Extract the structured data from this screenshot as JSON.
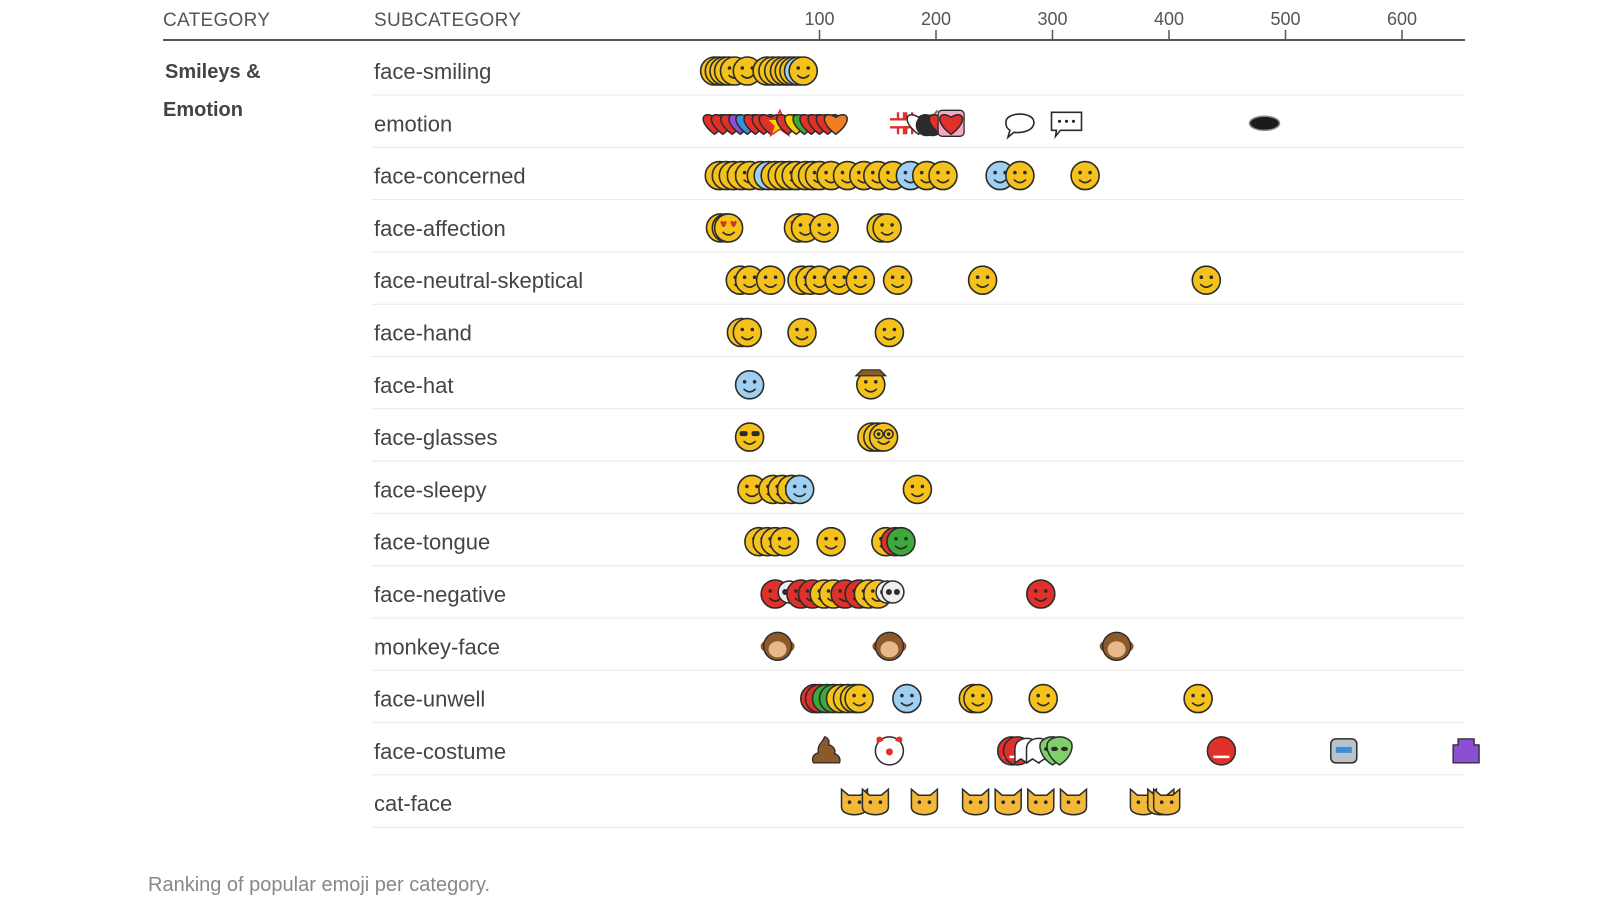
{
  "header": {
    "category": "CATEGORY",
    "subcategory": "SUBCATEGORY"
  },
  "caption": "Ranking of popular emoji per category.",
  "colors": {
    "face": "#f5c21b",
    "face_outline": "#2b2b2b",
    "red": "#e0302a",
    "orange": "#f07f23",
    "grey": "#9a9a9a",
    "purple": "#8a4fd2",
    "brown": "#8b5a2b",
    "green": "#3ea83a",
    "blue": "#3b8fd8",
    "rule": "#555555",
    "rowline": "#e8e8e8"
  },
  "chart_data": {
    "type": "scatter",
    "x_ticks": [
      100,
      200,
      300,
      400,
      500,
      600
    ],
    "xlim": [
      0,
      650
    ],
    "categories": [
      {
        "name": "Smileys &",
        "name2": "Emotion"
      }
    ],
    "rows": [
      {
        "subcategory": "face-smiling",
        "points": [
          {
            "x": 10,
            "kind": "face"
          },
          {
            "x": 14,
            "kind": "face"
          },
          {
            "x": 18,
            "kind": "face"
          },
          {
            "x": 22,
            "kind": "face"
          },
          {
            "x": 27,
            "kind": "face"
          },
          {
            "x": 38,
            "kind": "face"
          },
          {
            "x": 55,
            "kind": "face"
          },
          {
            "x": 60,
            "kind": "face"
          },
          {
            "x": 65,
            "kind": "face"
          },
          {
            "x": 70,
            "kind": "face"
          },
          {
            "x": 74,
            "kind": "face"
          },
          {
            "x": 78,
            "kind": "face"
          },
          {
            "x": 82,
            "kind": "face-blue"
          },
          {
            "x": 86,
            "kind": "face"
          }
        ]
      },
      {
        "subcategory": "emotion",
        "points": [
          {
            "x": 10,
            "kind": "heart-red"
          },
          {
            "x": 17,
            "kind": "heart-red"
          },
          {
            "x": 25,
            "kind": "heart-red"
          },
          {
            "x": 32,
            "kind": "heart-purple"
          },
          {
            "x": 38,
            "kind": "heart-blue"
          },
          {
            "x": 45,
            "kind": "heart-red"
          },
          {
            "x": 52,
            "kind": "heart-red"
          },
          {
            "x": 58,
            "kind": "heart-red"
          },
          {
            "x": 66,
            "kind": "burst"
          },
          {
            "x": 73,
            "kind": "heart-red"
          },
          {
            "x": 80,
            "kind": "heart-yellow"
          },
          {
            "x": 87,
            "kind": "heart-green"
          },
          {
            "x": 93,
            "kind": "heart-red"
          },
          {
            "x": 100,
            "kind": "heart-red"
          },
          {
            "x": 107,
            "kind": "heart-red"
          },
          {
            "x": 114,
            "kind": "heart-orange"
          },
          {
            "x": 170,
            "kind": "anger"
          },
          {
            "x": 177,
            "kind": "anger"
          },
          {
            "x": 185,
            "kind": "heart-white"
          },
          {
            "x": 192,
            "kind": "bomb"
          },
          {
            "x": 197,
            "kind": "bomb"
          },
          {
            "x": 204,
            "kind": "heart-red"
          },
          {
            "x": 213,
            "kind": "heart-box"
          },
          {
            "x": 272,
            "kind": "speech"
          },
          {
            "x": 312,
            "kind": "speech-dots"
          },
          {
            "x": 482,
            "kind": "hole"
          }
        ]
      },
      {
        "subcategory": "face-concerned",
        "points": [
          {
            "x": 14,
            "kind": "face"
          },
          {
            "x": 20,
            "kind": "face"
          },
          {
            "x": 26,
            "kind": "face"
          },
          {
            "x": 33,
            "kind": "face"
          },
          {
            "x": 40,
            "kind": "face"
          },
          {
            "x": 50,
            "kind": "face"
          },
          {
            "x": 56,
            "kind": "face-blue"
          },
          {
            "x": 62,
            "kind": "face"
          },
          {
            "x": 68,
            "kind": "face"
          },
          {
            "x": 74,
            "kind": "face"
          },
          {
            "x": 80,
            "kind": "face"
          },
          {
            "x": 88,
            "kind": "face"
          },
          {
            "x": 94,
            "kind": "face"
          },
          {
            "x": 100,
            "kind": "face"
          },
          {
            "x": 110,
            "kind": "face"
          },
          {
            "x": 124,
            "kind": "face"
          },
          {
            "x": 138,
            "kind": "face"
          },
          {
            "x": 150,
            "kind": "face"
          },
          {
            "x": 163,
            "kind": "face"
          },
          {
            "x": 178,
            "kind": "face-blue"
          },
          {
            "x": 192,
            "kind": "face"
          },
          {
            "x": 206,
            "kind": "face"
          },
          {
            "x": 255,
            "kind": "face-blue"
          },
          {
            "x": 272,
            "kind": "face"
          },
          {
            "x": 328,
            "kind": "face"
          }
        ]
      },
      {
        "subcategory": "face-affection",
        "points": [
          {
            "x": 15,
            "kind": "face-hearts"
          },
          {
            "x": 20,
            "kind": "face-hearts"
          },
          {
            "x": 22,
            "kind": "face-hearts"
          },
          {
            "x": 82,
            "kind": "face-hearts"
          },
          {
            "x": 88,
            "kind": "face"
          },
          {
            "x": 104,
            "kind": "face"
          },
          {
            "x": 153,
            "kind": "face"
          },
          {
            "x": 158,
            "kind": "face"
          }
        ]
      },
      {
        "subcategory": "face-neutral-skeptical",
        "points": [
          {
            "x": 32,
            "kind": "face"
          },
          {
            "x": 40,
            "kind": "face"
          },
          {
            "x": 58,
            "kind": "face"
          },
          {
            "x": 85,
            "kind": "face"
          },
          {
            "x": 92,
            "kind": "face"
          },
          {
            "x": 100,
            "kind": "face"
          },
          {
            "x": 117,
            "kind": "face"
          },
          {
            "x": 135,
            "kind": "face"
          },
          {
            "x": 167,
            "kind": "face"
          },
          {
            "x": 240,
            "kind": "face"
          },
          {
            "x": 432,
            "kind": "face"
          }
        ]
      },
      {
        "subcategory": "face-hand",
        "points": [
          {
            "x": 33,
            "kind": "face"
          },
          {
            "x": 38,
            "kind": "face"
          },
          {
            "x": 85,
            "kind": "face"
          },
          {
            "x": 160,
            "kind": "face"
          }
        ]
      },
      {
        "subcategory": "face-hat",
        "points": [
          {
            "x": 40,
            "kind": "face-blue"
          },
          {
            "x": 144,
            "kind": "face-cowboy"
          }
        ]
      },
      {
        "subcategory": "face-glasses",
        "points": [
          {
            "x": 40,
            "kind": "face-sunglasses"
          },
          {
            "x": 145,
            "kind": "face"
          },
          {
            "x": 150,
            "kind": "face"
          },
          {
            "x": 155,
            "kind": "face-nerd"
          }
        ]
      },
      {
        "subcategory": "face-sleepy",
        "points": [
          {
            "x": 42,
            "kind": "face"
          },
          {
            "x": 60,
            "kind": "face"
          },
          {
            "x": 68,
            "kind": "face"
          },
          {
            "x": 76,
            "kind": "face"
          },
          {
            "x": 83,
            "kind": "face-blue"
          },
          {
            "x": 184,
            "kind": "face"
          }
        ]
      },
      {
        "subcategory": "face-tongue",
        "points": [
          {
            "x": 48,
            "kind": "face"
          },
          {
            "x": 55,
            "kind": "face"
          },
          {
            "x": 62,
            "kind": "face"
          },
          {
            "x": 70,
            "kind": "face"
          },
          {
            "x": 110,
            "kind": "face"
          },
          {
            "x": 157,
            "kind": "face"
          },
          {
            "x": 165,
            "kind": "face-red"
          },
          {
            "x": 170,
            "kind": "face-green"
          }
        ]
      },
      {
        "subcategory": "face-negative",
        "points": [
          {
            "x": 62,
            "kind": "face-red"
          },
          {
            "x": 74,
            "kind": "skull"
          },
          {
            "x": 84,
            "kind": "face-red"
          },
          {
            "x": 94,
            "kind": "face-red"
          },
          {
            "x": 104,
            "kind": "face"
          },
          {
            "x": 112,
            "kind": "face"
          },
          {
            "x": 122,
            "kind": "face-red"
          },
          {
            "x": 134,
            "kind": "face-red"
          },
          {
            "x": 142,
            "kind": "face"
          },
          {
            "x": 150,
            "kind": "face"
          },
          {
            "x": 158,
            "kind": "skull"
          },
          {
            "x": 163,
            "kind": "skull"
          },
          {
            "x": 290,
            "kind": "face-red"
          }
        ]
      },
      {
        "subcategory": "monkey-face",
        "points": [
          {
            "x": 64,
            "kind": "monkey"
          },
          {
            "x": 160,
            "kind": "monkey"
          },
          {
            "x": 355,
            "kind": "monkey"
          }
        ]
      },
      {
        "subcategory": "face-unwell",
        "points": [
          {
            "x": 96,
            "kind": "face-red"
          },
          {
            "x": 100,
            "kind": "face-red"
          },
          {
            "x": 106,
            "kind": "face-green"
          },
          {
            "x": 112,
            "kind": "face-green"
          },
          {
            "x": 118,
            "kind": "face"
          },
          {
            "x": 124,
            "kind": "face"
          },
          {
            "x": 130,
            "kind": "face"
          },
          {
            "x": 134,
            "kind": "face"
          },
          {
            "x": 175,
            "kind": "face-blue"
          },
          {
            "x": 232,
            "kind": "face"
          },
          {
            "x": 236,
            "kind": "face"
          },
          {
            "x": 292,
            "kind": "face"
          },
          {
            "x": 425,
            "kind": "face"
          }
        ]
      },
      {
        "subcategory": "face-costume",
        "points": [
          {
            "x": 106,
            "kind": "poo"
          },
          {
            "x": 160,
            "kind": "clown"
          },
          {
            "x": 265,
            "kind": "ogre"
          },
          {
            "x": 270,
            "kind": "ogre"
          },
          {
            "x": 278,
            "kind": "ghost"
          },
          {
            "x": 288,
            "kind": "ghost"
          },
          {
            "x": 300,
            "kind": "alien"
          },
          {
            "x": 306,
            "kind": "alien"
          },
          {
            "x": 445,
            "kind": "ogre"
          },
          {
            "x": 550,
            "kind": "robot"
          },
          {
            "x": 655,
            "kind": "alien-monster"
          }
        ]
      },
      {
        "subcategory": "cat-face",
        "points": [
          {
            "x": 130,
            "kind": "cat"
          },
          {
            "x": 148,
            "kind": "cat"
          },
          {
            "x": 190,
            "kind": "cat"
          },
          {
            "x": 234,
            "kind": "cat"
          },
          {
            "x": 262,
            "kind": "cat"
          },
          {
            "x": 290,
            "kind": "cat"
          },
          {
            "x": 318,
            "kind": "cat"
          },
          {
            "x": 378,
            "kind": "cat"
          },
          {
            "x": 393,
            "kind": "cat"
          },
          {
            "x": 398,
            "kind": "cat"
          }
        ]
      }
    ]
  }
}
